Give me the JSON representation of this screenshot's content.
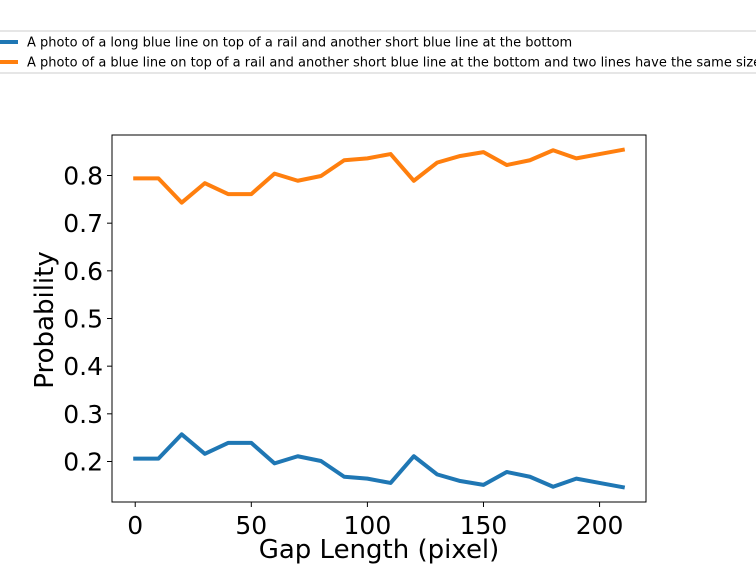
{
  "chart_data": {
    "type": "line",
    "xlabel": "Gap Length (pixel)",
    "ylabel": "Probability",
    "xlim": [
      -10,
      220
    ],
    "ylim": [
      0.115,
      0.885
    ],
    "xticks": [
      0,
      50,
      100,
      150,
      200
    ],
    "xtick_labels": [
      "0",
      "50",
      "100",
      "150",
      "200"
    ],
    "yticks": [
      0.2,
      0.3,
      0.4,
      0.5,
      0.6,
      0.7,
      0.8
    ],
    "ytick_labels": [
      "0.2",
      "0.3",
      "0.4",
      "0.5",
      "0.6",
      "0.7",
      "0.8"
    ],
    "grid": false,
    "legend_position": "top",
    "x": [
      0,
      10,
      20,
      30,
      40,
      50,
      60,
      70,
      80,
      90,
      100,
      110,
      120,
      130,
      140,
      150,
      160,
      170,
      180,
      190,
      200,
      210
    ],
    "series": [
      {
        "name": "A photo of a long blue line on top of a rail and another short blue line at the bottom",
        "color": "#1f77b4",
        "values": [
          0.206,
          0.206,
          0.257,
          0.216,
          0.239,
          0.239,
          0.196,
          0.211,
          0.201,
          0.168,
          0.164,
          0.155,
          0.211,
          0.173,
          0.159,
          0.151,
          0.178,
          0.168,
          0.147,
          0.164,
          0.155,
          0.146
        ]
      },
      {
        "name": "A photo of a blue line on top of a rail and another short blue line at the bottom and two lines have the same size",
        "color": "#ff7f0e",
        "values": [
          0.794,
          0.794,
          0.743,
          0.784,
          0.761,
          0.761,
          0.804,
          0.789,
          0.799,
          0.832,
          0.836,
          0.845,
          0.789,
          0.827,
          0.841,
          0.849,
          0.822,
          0.832,
          0.853,
          0.836,
          0.845,
          0.854
        ]
      }
    ]
  }
}
